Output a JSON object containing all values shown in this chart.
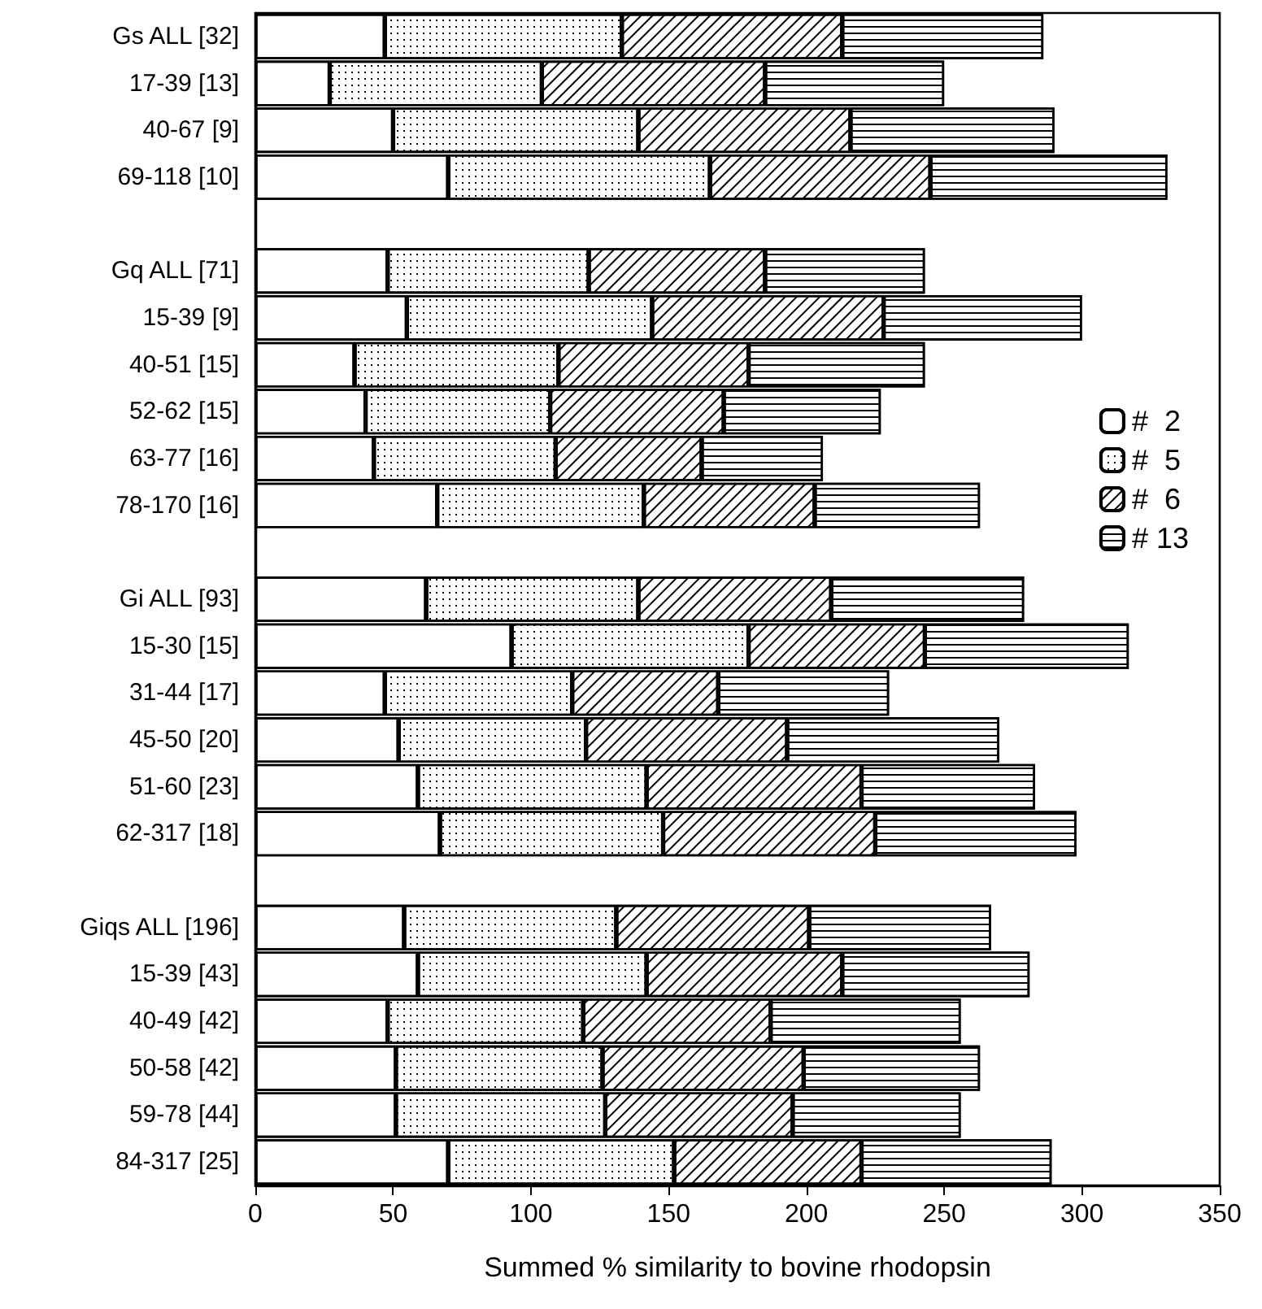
{
  "chart_data": {
    "type": "bar",
    "orientation": "horizontal",
    "stacked": true,
    "xlabel": "Summed % similarity to bovine rhodopsin",
    "categories": [
      "Gs ALL [32]",
      "17-39 [13]",
      "40-67 [9]",
      "69-118 [10]",
      null,
      "Gq ALL [71]",
      "15-39 [9]",
      "40-51 [15]",
      "52-62 [15]",
      "63-77 [16]",
      "78-170 [16]",
      null,
      "Gi ALL [93]",
      "15-30 [15]",
      "31-44 [17]",
      "45-50 [20]",
      "51-60 [23]",
      "62-317 [18]",
      null,
      "Giqs ALL [196]",
      "15-39 [43]",
      "40-49 [42]",
      "50-58 [42]",
      "59-78 [44]",
      "84-317 [25]"
    ],
    "series": [
      {
        "name": "#  2",
        "color": "#ffffff",
        "values": [
          47,
          27,
          50,
          70,
          null,
          48,
          55,
          36,
          40,
          43,
          66,
          null,
          62,
          93,
          47,
          52,
          59,
          67,
          null,
          54,
          59,
          48,
          51,
          51,
          70
        ]
      },
      {
        "name": "#  5",
        "color": "#ffffff",
        "values": [
          86,
          77,
          89,
          95,
          null,
          73,
          89,
          74,
          67,
          66,
          75,
          null,
          77,
          86,
          68,
          68,
          83,
          81,
          null,
          77,
          83,
          71,
          75,
          76,
          82
        ]
      },
      {
        "name": "#  6",
        "color": "#ffffff",
        "values": [
          80,
          81,
          77,
          80,
          null,
          64,
          84,
          69,
          63,
          53,
          62,
          null,
          70,
          64,
          53,
          73,
          78,
          77,
          null,
          70,
          71,
          68,
          73,
          68,
          68
        ]
      },
      {
        "name": "# 13",
        "color": "#ffffff",
        "values": [
          73,
          65,
          74,
          86,
          null,
          58,
          72,
          64,
          57,
          44,
          60,
          null,
          70,
          74,
          62,
          77,
          63,
          73,
          null,
          66,
          68,
          69,
          64,
          61,
          69
        ]
      }
    ],
    "xlim": [
      0,
      350
    ],
    "xticks": [
      0,
      50,
      100,
      150,
      200,
      250,
      300,
      350
    ],
    "legend": "right",
    "grid": false
  }
}
